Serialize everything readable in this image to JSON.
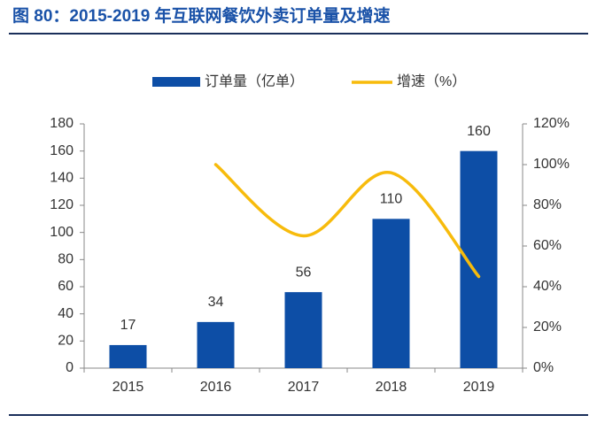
{
  "chart_data": {
    "type": "bar",
    "title": "图 80：2015-2019 年互联网餐饮外卖订单量及增速",
    "categories": [
      "2015",
      "2016",
      "2017",
      "2018",
      "2019"
    ],
    "series": [
      {
        "name": "订单量（亿单）",
        "type": "bar",
        "color": "#0d4ea6",
        "values": [
          17,
          34,
          56,
          110,
          160
        ]
      },
      {
        "name": "增速（%）",
        "type": "line",
        "axis": "y2",
        "color": "#f7bb0c",
        "values": [
          null,
          100,
          65,
          96,
          45
        ]
      }
    ],
    "ylim": [
      0,
      180
    ],
    "yticks": [
      0,
      20,
      40,
      60,
      80,
      100,
      120,
      140,
      160,
      180
    ],
    "y2lim": [
      0,
      120
    ],
    "y2ticks": [
      {
        "value": 0,
        "label": "0%"
      },
      {
        "value": 20,
        "label": "20%"
      },
      {
        "value": 40,
        "label": "40%"
      },
      {
        "value": 60,
        "label": "60%"
      },
      {
        "value": 80,
        "label": "80%"
      },
      {
        "value": 100,
        "label": "100%"
      },
      {
        "value": 120,
        "label": "120%"
      }
    ],
    "legend": "top",
    "data_labels": true
  }
}
